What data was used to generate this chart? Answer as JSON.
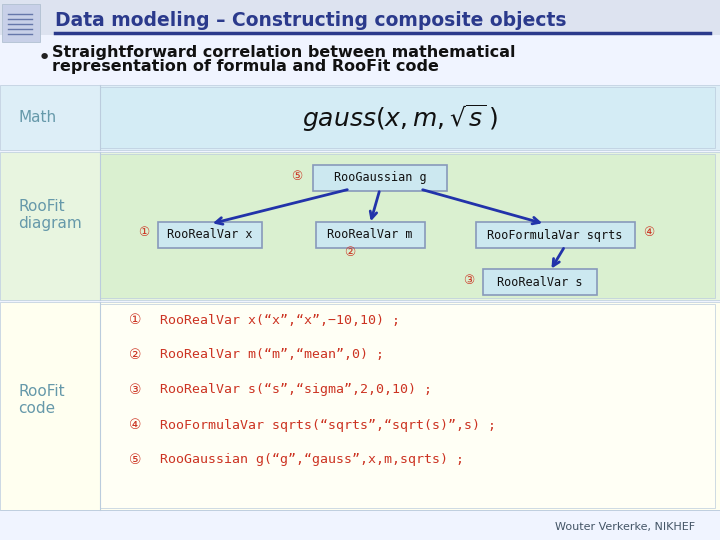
{
  "title": "Data modeling – Constructing composite objects",
  "title_color": "#2b3a8c",
  "bullet_text": "Straightforward correlation between mathematical\nrepresentation of formula and RooFit code",
  "bg_color": "#f0f4ff",
  "slide_bg": "#eef0f8",
  "math_row_bg": "#ddeef7",
  "diagram_row_bg": "#e8f5e0",
  "code_row_bg": "#fffff0",
  "row_label_color": "#6699aa",
  "box_border_color": "#8899bb",
  "box_fill": "#cce0ee",
  "arrow_color": "#2233aa",
  "circled_color": "#cc3322",
  "code_color": "#cc3322",
  "code_blue": "#2244cc",
  "footer_color": "#445566",
  "code_lines": [
    "RooRealVar x(“x”,“x”,−10,10) ;",
    "RooRealVar m(“m”,“mean”,0) ;",
    "RooRealVar s(“s”,“sigma”,2,0,10) ;",
    "RooFormulaVar sqrts(“sqrts”,“sqrt(s)”,s) ;",
    "RooGaussian g(“g”,“gauss”,x,m,sqrts) ;"
  ],
  "code_numbers": [
    "①",
    "②",
    "③",
    "④",
    "⑤"
  ],
  "footer": "Wouter Verkerke, NIKHEF"
}
